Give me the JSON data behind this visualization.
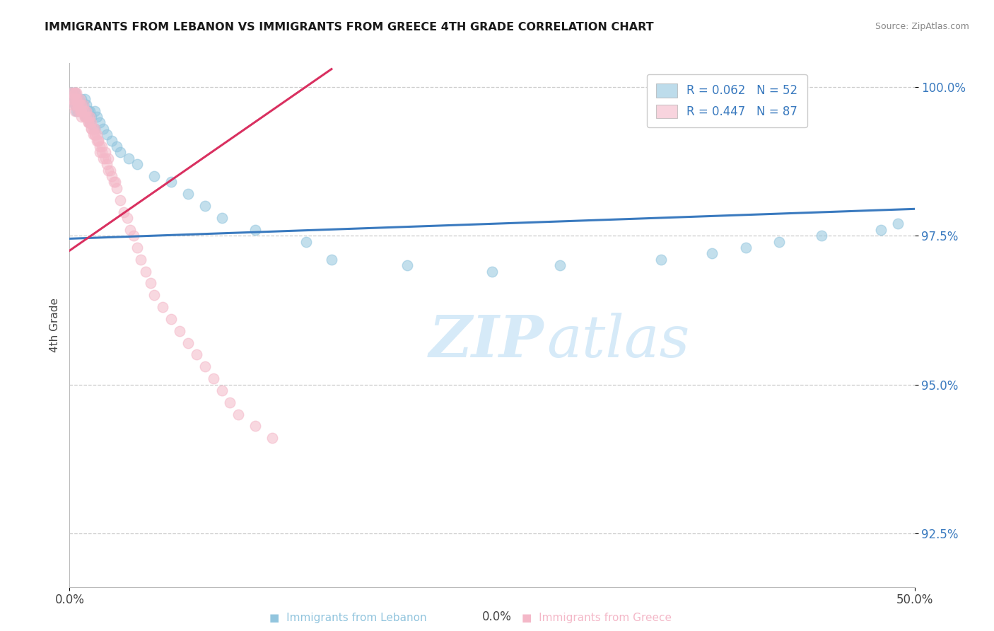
{
  "title": "IMMIGRANTS FROM LEBANON VS IMMIGRANTS FROM GREECE 4TH GRADE CORRELATION CHART",
  "source": "Source: ZipAtlas.com",
  "ylabel": "4th Grade",
  "xlim": [
    0.0,
    0.5
  ],
  "ylim": [
    0.916,
    1.004
  ],
  "xtick_labels": [
    "0.0%",
    "50.0%"
  ],
  "xtick_vals": [
    0.0,
    0.5
  ],
  "ytick_labels": [
    "92.5%",
    "95.0%",
    "97.5%",
    "100.0%"
  ],
  "ytick_vals": [
    0.925,
    0.95,
    0.975,
    1.0
  ],
  "legend_blue_r": "R = 0.062",
  "legend_blue_n": "N = 52",
  "legend_pink_r": "R = 0.447",
  "legend_pink_n": "N = 87",
  "blue_color": "#92c5de",
  "pink_color": "#f4b8c8",
  "blue_line_color": "#3a7abf",
  "pink_line_color": "#d93060",
  "watermark_color": "#d6eaf8",
  "blue_scatter_x": [
    0.001,
    0.002,
    0.002,
    0.003,
    0.003,
    0.004,
    0.004,
    0.005,
    0.005,
    0.006,
    0.007,
    0.008,
    0.009,
    0.01,
    0.011,
    0.012,
    0.013,
    0.015,
    0.016,
    0.018,
    0.02,
    0.022,
    0.025,
    0.028,
    0.03,
    0.035,
    0.04,
    0.05,
    0.06,
    0.07,
    0.08,
    0.09,
    0.11,
    0.14,
    0.155,
    0.2,
    0.25,
    0.29,
    0.35,
    0.38,
    0.4,
    0.42,
    0.445,
    0.48,
    0.49,
    0.003,
    0.004,
    0.006,
    0.008,
    0.01,
    0.012,
    0.015
  ],
  "blue_scatter_y": [
    0.999,
    0.999,
    0.998,
    0.998,
    0.997,
    0.997,
    0.996,
    0.996,
    0.998,
    0.997,
    0.998,
    0.997,
    0.998,
    0.997,
    0.996,
    0.996,
    0.995,
    0.996,
    0.995,
    0.994,
    0.993,
    0.992,
    0.991,
    0.99,
    0.989,
    0.988,
    0.987,
    0.985,
    0.984,
    0.982,
    0.98,
    0.978,
    0.976,
    0.974,
    0.971,
    0.97,
    0.969,
    0.97,
    0.971,
    0.972,
    0.973,
    0.974,
    0.975,
    0.976,
    0.977,
    0.999,
    0.998,
    0.997,
    0.996,
    0.995,
    0.994,
    0.993
  ],
  "pink_scatter_x": [
    0.001,
    0.001,
    0.002,
    0.002,
    0.002,
    0.003,
    0.003,
    0.003,
    0.003,
    0.004,
    0.004,
    0.004,
    0.005,
    0.005,
    0.005,
    0.006,
    0.006,
    0.006,
    0.007,
    0.007,
    0.007,
    0.008,
    0.008,
    0.009,
    0.009,
    0.01,
    0.01,
    0.011,
    0.011,
    0.012,
    0.012,
    0.013,
    0.013,
    0.014,
    0.014,
    0.015,
    0.015,
    0.016,
    0.016,
    0.017,
    0.018,
    0.018,
    0.019,
    0.02,
    0.021,
    0.022,
    0.023,
    0.024,
    0.025,
    0.026,
    0.027,
    0.028,
    0.03,
    0.032,
    0.034,
    0.036,
    0.038,
    0.04,
    0.042,
    0.045,
    0.048,
    0.05,
    0.055,
    0.06,
    0.065,
    0.07,
    0.075,
    0.08,
    0.085,
    0.09,
    0.095,
    0.1,
    0.11,
    0.12,
    0.005,
    0.007,
    0.009,
    0.011,
    0.013,
    0.015,
    0.017,
    0.019,
    0.021,
    0.023,
    0.003,
    0.004,
    0.006
  ],
  "pink_scatter_y": [
    0.999,
    0.998,
    0.999,
    0.998,
    0.997,
    0.999,
    0.998,
    0.997,
    0.996,
    0.999,
    0.998,
    0.997,
    0.998,
    0.997,
    0.996,
    0.998,
    0.997,
    0.996,
    0.997,
    0.996,
    0.995,
    0.997,
    0.996,
    0.996,
    0.995,
    0.996,
    0.995,
    0.995,
    0.994,
    0.995,
    0.994,
    0.994,
    0.993,
    0.993,
    0.992,
    0.993,
    0.992,
    0.992,
    0.991,
    0.991,
    0.99,
    0.989,
    0.989,
    0.988,
    0.988,
    0.987,
    0.986,
    0.986,
    0.985,
    0.984,
    0.984,
    0.983,
    0.981,
    0.979,
    0.978,
    0.976,
    0.975,
    0.973,
    0.971,
    0.969,
    0.967,
    0.965,
    0.963,
    0.961,
    0.959,
    0.957,
    0.955,
    0.953,
    0.951,
    0.949,
    0.947,
    0.945,
    0.943,
    0.941,
    0.997,
    0.996,
    0.995,
    0.994,
    0.993,
    0.992,
    0.991,
    0.99,
    0.989,
    0.988,
    0.999,
    0.998,
    0.997
  ],
  "blue_line_x": [
    0.0,
    0.5
  ],
  "blue_line_y": [
    0.9745,
    0.9795
  ],
  "pink_line_x": [
    0.0,
    0.155
  ],
  "pink_line_y": [
    0.9725,
    1.003
  ]
}
